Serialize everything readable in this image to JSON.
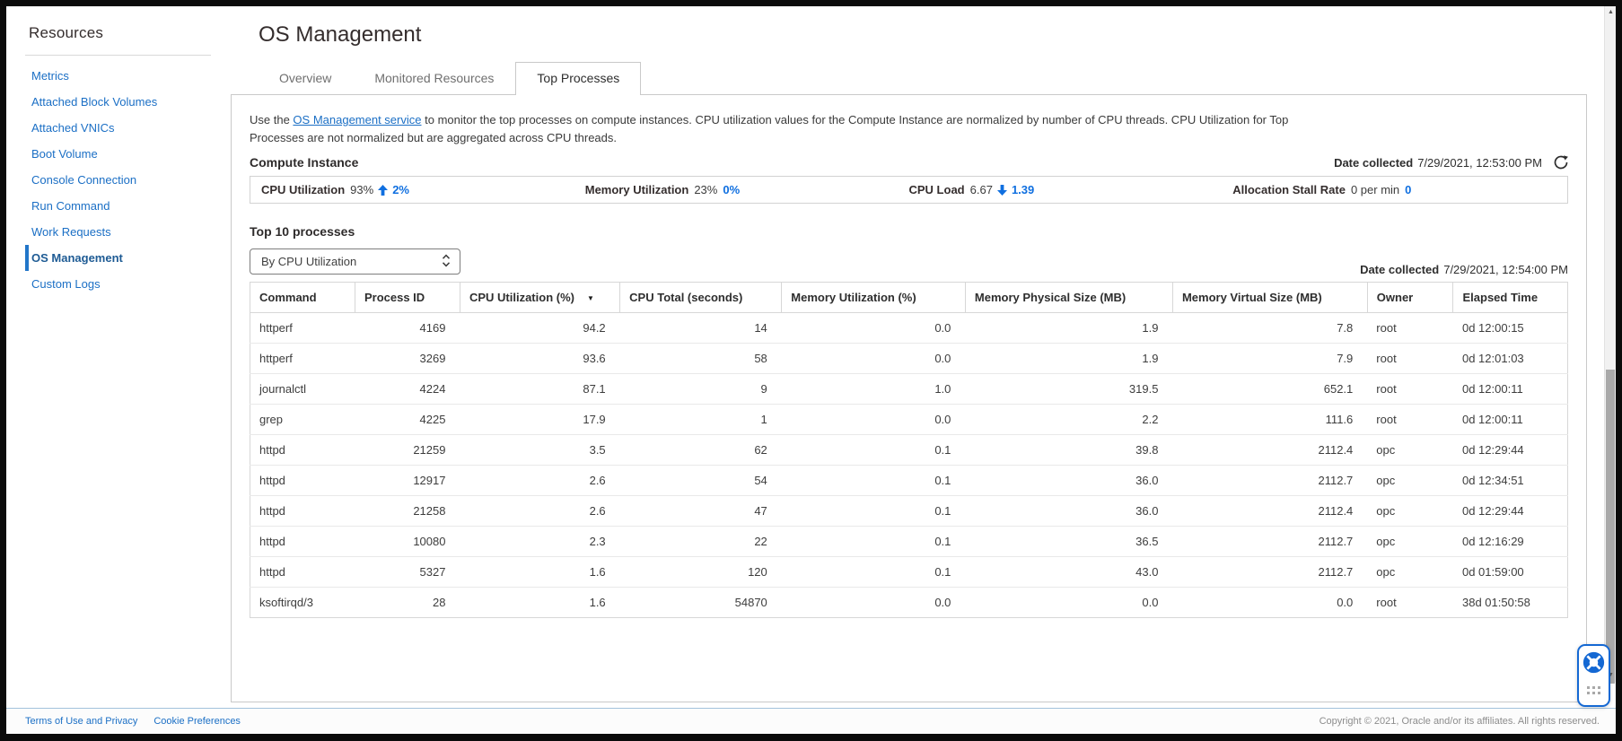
{
  "colors": {
    "link": "#1B6FC5",
    "accent": "#0F6FE0",
    "active_nav_border": "#2276C9"
  },
  "sidebar": {
    "title": "Resources",
    "items": [
      {
        "label": "Metrics",
        "active": false
      },
      {
        "label": "Attached Block Volumes",
        "active": false
      },
      {
        "label": "Attached VNICs",
        "active": false
      },
      {
        "label": "Boot Volume",
        "active": false
      },
      {
        "label": "Console Connection",
        "active": false
      },
      {
        "label": "Run Command",
        "active": false
      },
      {
        "label": "Work Requests",
        "active": false
      },
      {
        "label": "OS Management",
        "active": true
      },
      {
        "label": "Custom Logs",
        "active": false
      }
    ]
  },
  "header": {
    "title": "OS Management"
  },
  "tabs": [
    {
      "label": "Overview",
      "active": false
    },
    {
      "label": "Monitored Resources",
      "active": false
    },
    {
      "label": "Top Processes",
      "active": true
    }
  ],
  "intro": {
    "pre_link": "Use the ",
    "link": "OS Management service",
    "post_link": " to monitor the top processes on compute instances. CPU utilization values for the Compute Instance are normalized by number of CPU threads. CPU Utilization for Top Processes are not normalized but are aggregated across CPU threads."
  },
  "compute_instance": {
    "heading": "Compute Instance",
    "date_collected_label": "Date collected",
    "date_collected_value": "7/29/2021, 12:53:00 PM",
    "metrics": [
      {
        "label": "CPU Utilization",
        "value": "93%",
        "trend": "up",
        "change": "2%"
      },
      {
        "label": "Memory Utilization",
        "value": "23%",
        "trend": "none",
        "change": "0%"
      },
      {
        "label": "CPU Load",
        "value": "6.67",
        "trend": "down",
        "change": "1.39"
      },
      {
        "label": "Allocation Stall Rate",
        "value": "0 per min",
        "trend": "none",
        "change": "0"
      }
    ]
  },
  "top_processes": {
    "heading": "Top 10 processes",
    "sort_select_value": "By CPU Utilization",
    "date_collected_label": "Date collected",
    "date_collected_value": "7/29/2021, 12:54:00 PM",
    "table": {
      "columns": [
        "Command",
        "Process ID",
        "CPU Utilization (%)",
        "CPU Total (seconds)",
        "Memory Utilization (%)",
        "Memory Physical Size (MB)",
        "Memory Virtual Size (MB)",
        "Owner",
        "Elapsed Time"
      ],
      "sorted_column": "CPU Utilization (%)",
      "sort_direction": "desc",
      "rows": [
        [
          "httperf",
          "4169",
          "94.2",
          "14",
          "0.0",
          "1.9",
          "7.8",
          "root",
          "0d 12:00:15"
        ],
        [
          "httperf",
          "3269",
          "93.6",
          "58",
          "0.0",
          "1.9",
          "7.9",
          "root",
          "0d 12:01:03"
        ],
        [
          "journalctl",
          "4224",
          "87.1",
          "9",
          "1.0",
          "319.5",
          "652.1",
          "root",
          "0d 12:00:11"
        ],
        [
          "grep",
          "4225",
          "17.9",
          "1",
          "0.0",
          "2.2",
          "111.6",
          "root",
          "0d 12:00:11"
        ],
        [
          "httpd",
          "21259",
          "3.5",
          "62",
          "0.1",
          "39.8",
          "2112.4",
          "opc",
          "0d 12:29:44"
        ],
        [
          "httpd",
          "12917",
          "2.6",
          "54",
          "0.1",
          "36.0",
          "2112.7",
          "opc",
          "0d 12:34:51"
        ],
        [
          "httpd",
          "21258",
          "2.6",
          "47",
          "0.1",
          "36.0",
          "2112.4",
          "opc",
          "0d 12:29:44"
        ],
        [
          "httpd",
          "10080",
          "2.3",
          "22",
          "0.1",
          "36.5",
          "2112.7",
          "opc",
          "0d 12:16:29"
        ],
        [
          "httpd",
          "5327",
          "1.6",
          "120",
          "0.1",
          "43.0",
          "2112.7",
          "opc",
          "0d 01:59:00"
        ],
        [
          "ksoftirqd/3",
          "28",
          "1.6",
          "54870",
          "0.0",
          "0.0",
          "0.0",
          "root",
          "38d 01:50:58"
        ]
      ]
    }
  },
  "footer": {
    "links": [
      "Terms of Use and Privacy",
      "Cookie Preferences"
    ],
    "copyright": "Copyright © 2021, Oracle and/or its affiliates. All rights reserved."
  }
}
